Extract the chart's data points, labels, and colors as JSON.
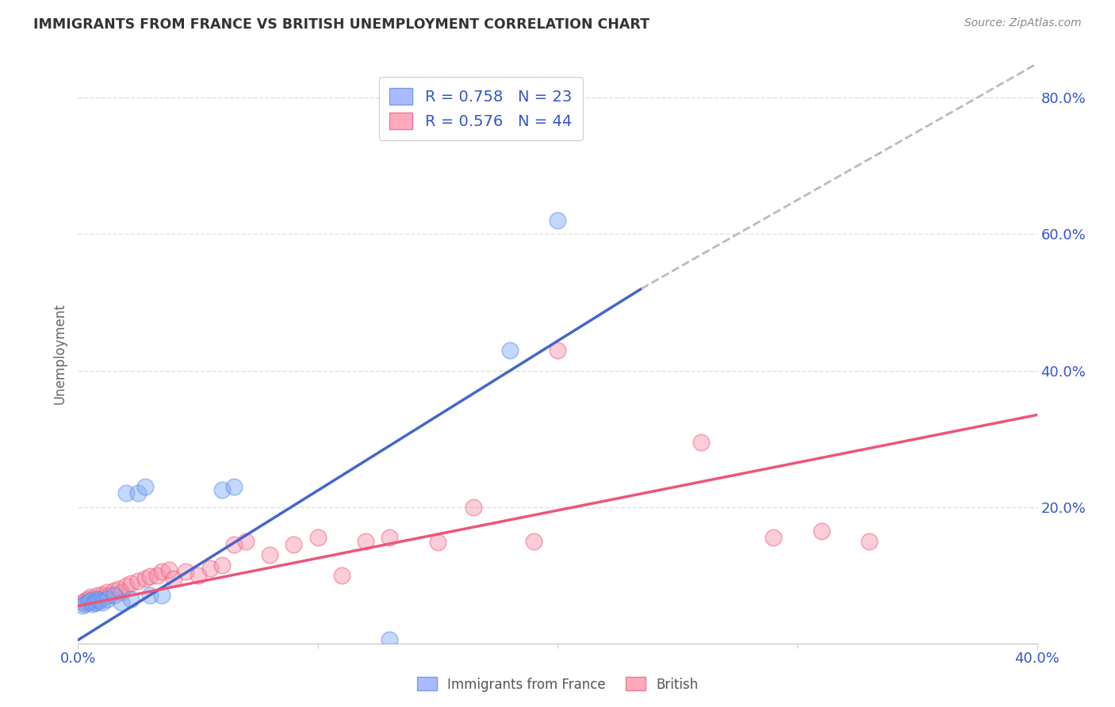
{
  "title": "IMMIGRANTS FROM FRANCE VS BRITISH UNEMPLOYMENT CORRELATION CHART",
  "source": "Source: ZipAtlas.com",
  "ylabel": "Unemployment",
  "xlim": [
    0.0,
    0.4
  ],
  "ylim": [
    0.0,
    0.85
  ],
  "blue_color": "#7aaaf5",
  "blue_edge_color": "#5588ee",
  "pink_color": "#f590aa",
  "pink_edge_color": "#ee5577",
  "blue_line_color": "#4466cc",
  "pink_line_color": "#ee5577",
  "dash_line_color": "#bbbbbb",
  "legend_text_color": "#3355cc",
  "blue_R": 0.758,
  "blue_N": 23,
  "pink_R": 0.576,
  "pink_N": 44,
  "blue_scatter_x": [
    0.002,
    0.003,
    0.004,
    0.005,
    0.006,
    0.007,
    0.008,
    0.009,
    0.01,
    0.012,
    0.015,
    0.018,
    0.02,
    0.022,
    0.025,
    0.028,
    0.03,
    0.035,
    0.06,
    0.065,
    0.13,
    0.18,
    0.2
  ],
  "blue_scatter_y": [
    0.055,
    0.058,
    0.06,
    0.062,
    0.058,
    0.06,
    0.065,
    0.062,
    0.06,
    0.065,
    0.07,
    0.06,
    0.22,
    0.065,
    0.22,
    0.23,
    0.07,
    0.07,
    0.225,
    0.23,
    0.005,
    0.43,
    0.62
  ],
  "pink_scatter_x": [
    0.002,
    0.003,
    0.004,
    0.005,
    0.006,
    0.007,
    0.008,
    0.009,
    0.01,
    0.011,
    0.012,
    0.013,
    0.015,
    0.017,
    0.018,
    0.02,
    0.022,
    0.025,
    0.028,
    0.03,
    0.033,
    0.035,
    0.038,
    0.04,
    0.045,
    0.05,
    0.055,
    0.06,
    0.065,
    0.07,
    0.08,
    0.09,
    0.1,
    0.11,
    0.12,
    0.13,
    0.15,
    0.165,
    0.19,
    0.2,
    0.26,
    0.29,
    0.31,
    0.33
  ],
  "pink_scatter_y": [
    0.06,
    0.062,
    0.065,
    0.068,
    0.065,
    0.06,
    0.07,
    0.065,
    0.072,
    0.068,
    0.075,
    0.07,
    0.078,
    0.08,
    0.075,
    0.085,
    0.088,
    0.092,
    0.095,
    0.098,
    0.1,
    0.105,
    0.108,
    0.095,
    0.105,
    0.1,
    0.11,
    0.115,
    0.145,
    0.15,
    0.13,
    0.145,
    0.155,
    0.1,
    0.15,
    0.155,
    0.148,
    0.2,
    0.15,
    0.43,
    0.295,
    0.155,
    0.165,
    0.15
  ],
  "blue_line_x": [
    0.0,
    0.235
  ],
  "blue_line_y": [
    0.005,
    0.52
  ],
  "dash_line_x": [
    0.235,
    0.4
  ],
  "dash_line_y": [
    0.52,
    0.85
  ],
  "pink_line_x": [
    0.0,
    0.4
  ],
  "pink_line_y": [
    0.055,
    0.335
  ],
  "background_color": "#ffffff",
  "grid_color": "#e0e0e0",
  "x_tick_positions": [
    0.0,
    0.1,
    0.2,
    0.3,
    0.4
  ],
  "x_tick_labels": [
    "0.0%",
    "",
    "",
    "",
    "40.0%"
  ],
  "y_tick_right_positions": [
    0.2,
    0.4,
    0.6,
    0.8
  ],
  "y_tick_right_labels": [
    "20.0%",
    "40.0%",
    "60.0%",
    "80.0%"
  ]
}
